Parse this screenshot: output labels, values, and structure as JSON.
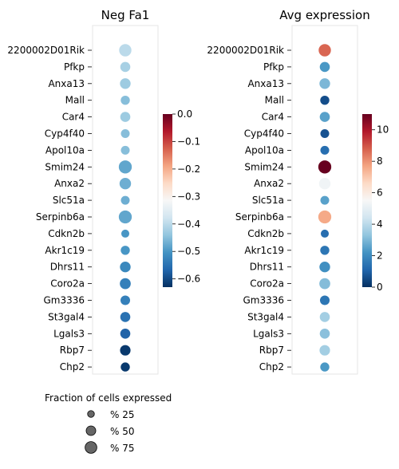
{
  "chart_data": {
    "type": "dotplot",
    "genes": [
      "2200002D01Rik",
      "Pfkp",
      "Anxa13",
      "Mall",
      "Car4",
      "Cyp4f40",
      "Apol10a",
      "Smim24",
      "Anxa2",
      "Slc51a",
      "Serpinb6a",
      "Cdkn2b",
      "Akr1c19",
      "Dhrs11",
      "Coro2a",
      "Gm3336",
      "St3gal4",
      "Lgals3",
      "Rbp7",
      "Chp2"
    ],
    "panels": [
      {
        "title": "Neg Fa1",
        "colormap": "RdBu_r",
        "colorbar": {
          "min": -0.63,
          "max": 0.0,
          "ticks": [
            0.0,
            -0.1,
            -0.2,
            -0.3,
            -0.4,
            -0.5,
            -0.6
          ],
          "tick_labels": [
            "0.0",
            "−0.1",
            "−0.2",
            "−0.3",
            "−0.4",
            "−0.5",
            "−0.6"
          ]
        },
        "color_values": [
          -0.4,
          -0.42,
          -0.43,
          -0.45,
          -0.43,
          -0.45,
          -0.45,
          -0.48,
          -0.47,
          -0.47,
          -0.48,
          -0.5,
          -0.5,
          -0.52,
          -0.53,
          -0.53,
          -0.55,
          -0.57,
          -0.62,
          -0.62
        ],
        "fraction_values": [
          0.82,
          0.55,
          0.62,
          0.45,
          0.55,
          0.42,
          0.42,
          0.92,
          0.72,
          0.42,
          0.92,
          0.35,
          0.45,
          0.62,
          0.65,
          0.5,
          0.55,
          0.55,
          0.6,
          0.45
        ]
      },
      {
        "title": "Avg expression",
        "colormap": "RdBu_r",
        "colorbar": {
          "min": 0,
          "max": 11,
          "ticks": [
            0,
            2,
            4,
            6,
            8,
            10
          ],
          "tick_labels": [
            "0",
            "2",
            "4",
            "6",
            "8",
            "10"
          ]
        },
        "color_values": [
          8.7,
          2.3,
          3.0,
          0.6,
          2.5,
          0.7,
          1.3,
          11.0,
          5.3,
          2.5,
          7.6,
          1.3,
          1.5,
          2.1,
          3.1,
          1.5,
          3.6,
          3.2,
          3.6,
          2.3
        ],
        "fraction_values": [
          0.82,
          0.55,
          0.62,
          0.45,
          0.55,
          0.42,
          0.42,
          0.92,
          0.72,
          0.42,
          0.92,
          0.35,
          0.45,
          0.62,
          0.65,
          0.5,
          0.55,
          0.55,
          0.6,
          0.45
        ]
      }
    ],
    "size_legend": {
      "title": "Fraction of cells expressed",
      "entries": [
        {
          "label": "% 25",
          "value": 0.25
        },
        {
          "label": "% 50",
          "value": 0.5
        },
        {
          "label": "% 75",
          "value": 0.75
        }
      ]
    }
  }
}
